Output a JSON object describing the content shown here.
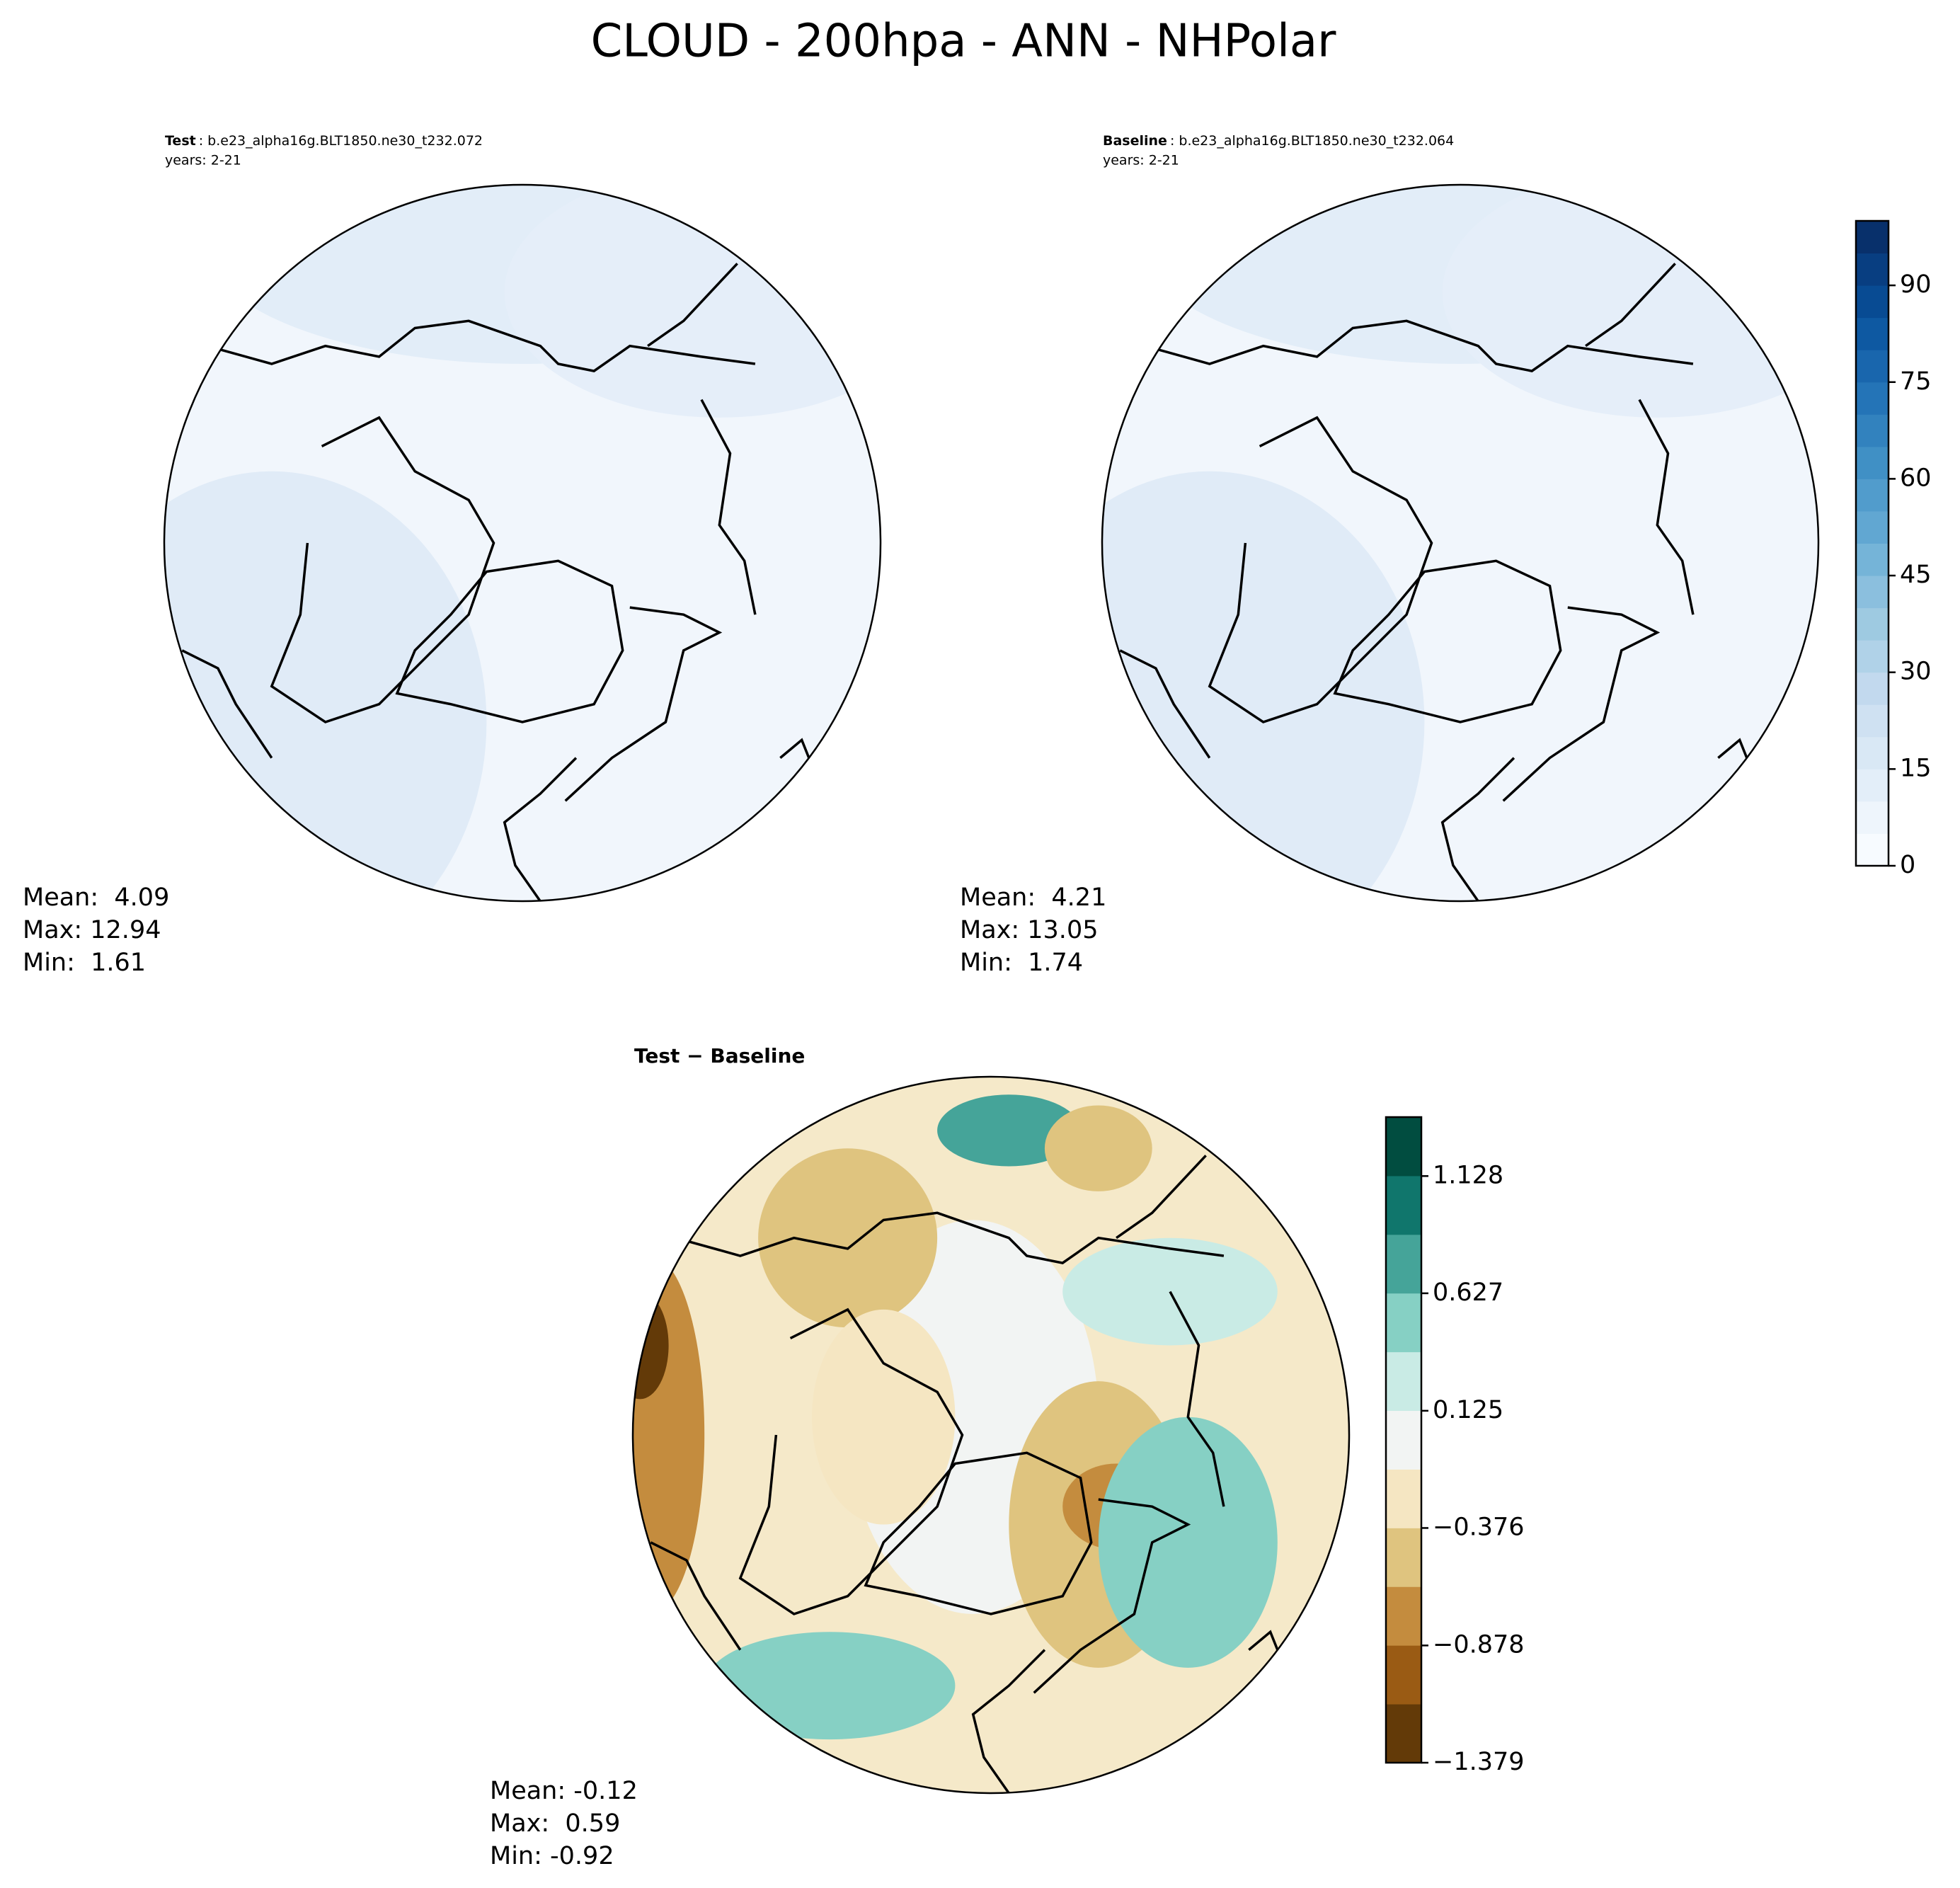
{
  "title": "CLOUD - 200hpa - ANN - NHPolar",
  "panels": [
    {
      "label": "Test",
      "case": ": b.e23_alpha16g.BLT1850.ne30_t232.072",
      "years": "years: 2-21",
      "stats": [
        "Mean:  4.09",
        "Max: 12.94",
        "Min:  1.61"
      ]
    },
    {
      "label": "Baseline",
      "case": ": b.e23_alpha16g.BLT1850.ne30_t232.064",
      "years": "years: 2-21",
      "stats": [
        "Mean:  4.21",
        "Max: 13.05",
        "Min:  1.74"
      ]
    },
    {
      "title": "Test − Baseline",
      "stats": [
        "Mean: -0.12",
        "Max:  0.59",
        "Min: -0.92"
      ]
    }
  ],
  "colorbars": [
    {
      "lim": [
        0,
        100
      ],
      "ticks": [
        0,
        15,
        30,
        45,
        60,
        75,
        90
      ],
      "colors": [
        "#f7fbff",
        "#eef5fc",
        "#e3eef9",
        "#d9e8f5",
        "#cfe1f2",
        "#c2d9ee",
        "#b0d2e8",
        "#9ecae1",
        "#8bbfde",
        "#75b4d8",
        "#61a7d2",
        "#519ccc",
        "#4090c5",
        "#3282be",
        "#2474b7",
        "#1966ad",
        "#0e59a2",
        "#084b93",
        "#083e81",
        "#08306b"
      ]
    },
    {
      "lim": [
        -1.379,
        1.38
      ],
      "ticks": [
        {
          "value": -1.379,
          "label": "−1.379"
        },
        {
          "value": -0.878,
          "label": "−0.878"
        },
        {
          "value": -0.376,
          "label": "−0.376"
        },
        0.125,
        0.627,
        1.128
      ],
      "colors": [
        "#633a08",
        "#9a5b14",
        "#c48c3e",
        "#dfc47f",
        "#f5e6c2",
        "#f2f4f3",
        "#c9ebe5",
        "#86d0c4",
        "#45a499",
        "#10766c",
        "#014d40"
      ]
    }
  ]
}
